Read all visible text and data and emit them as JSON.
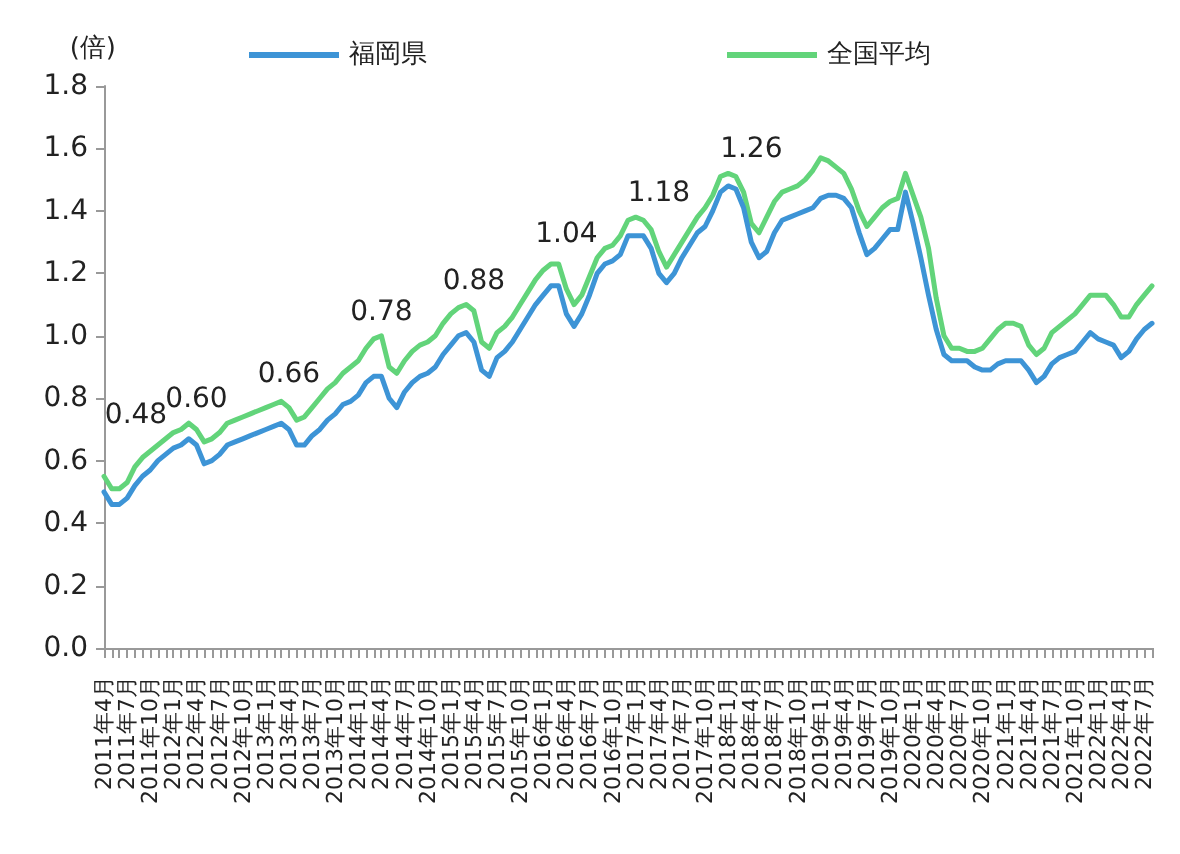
{
  "chart_data": {
    "type": "line",
    "ylabel": "(倍)",
    "categories": [
      "2011年4月",
      null,
      null,
      "2011年7月",
      null,
      null,
      "2011年10月",
      null,
      null,
      "2012年1月",
      null,
      null,
      "2012年4月",
      null,
      null,
      "2012年7月",
      null,
      null,
      "2012年10月",
      null,
      null,
      "2013年1月",
      null,
      null,
      "2013年4月",
      null,
      null,
      "2013年7月",
      null,
      null,
      "2013年10月",
      null,
      null,
      "2014年1月",
      null,
      null,
      "2014年4月",
      null,
      null,
      "2014年7月",
      null,
      null,
      "2014年10月",
      null,
      null,
      "2015年1月",
      null,
      null,
      "2015年4月",
      null,
      null,
      "2015年7月",
      null,
      null,
      "2015年10月",
      null,
      null,
      "2016年1月",
      null,
      null,
      "2016年4月",
      null,
      null,
      "2016年7月",
      null,
      null,
      "2016年10月",
      null,
      null,
      "2017年1月",
      null,
      null,
      "2017年4月",
      null,
      null,
      "2017年7月",
      null,
      null,
      "2017年10月",
      null,
      null,
      "2018年1月",
      null,
      null,
      "2018年4月",
      null,
      null,
      "2018年7月",
      null,
      null,
      "2018年10月",
      null,
      null,
      "2019年1月",
      null,
      null,
      "2019年4月",
      null,
      null,
      "2019年7月",
      null,
      null,
      "2019年10月",
      null,
      null,
      "2020年1月",
      null,
      null,
      "2020年4月",
      null,
      null,
      "2020年7月",
      null,
      null,
      "2020年10月",
      null,
      null,
      "2021年1月",
      null,
      null,
      "2021年4月",
      null,
      null,
      "2021年7月",
      null,
      null,
      "2021年10月",
      null,
      null,
      "2022年1月",
      null,
      null,
      "2022年4月",
      null,
      null,
      "2022年7月",
      null
    ],
    "series": [
      {
        "name": "福岡県",
        "color": "#3d94d6",
        "values": [
          0.5,
          0.46,
          0.46,
          0.48,
          0.52,
          0.55,
          0.57,
          0.6,
          0.62,
          0.64,
          0.65,
          0.67,
          0.65,
          0.59,
          0.6,
          0.62,
          0.65,
          0.66,
          0.67,
          0.68,
          0.69,
          0.7,
          0.71,
          0.72,
          0.7,
          0.65,
          0.65,
          0.68,
          0.7,
          0.73,
          0.75,
          0.78,
          0.79,
          0.81,
          0.85,
          0.87,
          0.87,
          0.8,
          0.77,
          0.82,
          0.85,
          0.87,
          0.88,
          0.9,
          0.94,
          0.97,
          1.0,
          1.01,
          0.98,
          0.89,
          0.87,
          0.93,
          0.95,
          0.98,
          1.02,
          1.06,
          1.1,
          1.13,
          1.16,
          1.16,
          1.07,
          1.03,
          1.07,
          1.13,
          1.2,
          1.23,
          1.24,
          1.26,
          1.32,
          1.32,
          1.32,
          1.28,
          1.2,
          1.17,
          1.2,
          1.25,
          1.29,
          1.33,
          1.35,
          1.4,
          1.46,
          1.48,
          1.47,
          1.41,
          1.3,
          1.25,
          1.27,
          1.33,
          1.37,
          1.38,
          1.39,
          1.4,
          1.41,
          1.44,
          1.45,
          1.45,
          1.44,
          1.41,
          1.33,
          1.26,
          1.28,
          1.31,
          1.34,
          1.34,
          1.46,
          1.36,
          1.25,
          1.13,
          1.02,
          0.94,
          0.92,
          0.92,
          0.92,
          0.9,
          0.89,
          0.89,
          0.91,
          0.92,
          0.92,
          0.92,
          0.89,
          0.85,
          0.87,
          0.91,
          0.93,
          0.94,
          0.95,
          0.98,
          1.01,
          0.99,
          0.98,
          0.97,
          0.93,
          0.95,
          0.99,
          1.02,
          1.04
        ]
      },
      {
        "name": "全国平均",
        "color": "#62d47a",
        "values": [
          0.55,
          0.51,
          0.51,
          0.53,
          0.58,
          0.61,
          0.63,
          0.65,
          0.67,
          0.69,
          0.7,
          0.72,
          0.7,
          0.66,
          0.67,
          0.69,
          0.72,
          0.73,
          0.74,
          0.75,
          0.76,
          0.77,
          0.78,
          0.79,
          0.77,
          0.73,
          0.74,
          0.77,
          0.8,
          0.83,
          0.85,
          0.88,
          0.9,
          0.92,
          0.96,
          0.99,
          1.0,
          0.9,
          0.88,
          0.92,
          0.95,
          0.97,
          0.98,
          1.0,
          1.04,
          1.07,
          1.09,
          1.1,
          1.08,
          0.98,
          0.96,
          1.01,
          1.03,
          1.06,
          1.1,
          1.14,
          1.18,
          1.21,
          1.23,
          1.23,
          1.15,
          1.1,
          1.13,
          1.19,
          1.25,
          1.28,
          1.29,
          1.32,
          1.37,
          1.38,
          1.37,
          1.34,
          1.27,
          1.22,
          1.26,
          1.3,
          1.34,
          1.38,
          1.41,
          1.45,
          1.51,
          1.52,
          1.51,
          1.46,
          1.36,
          1.33,
          1.38,
          1.43,
          1.46,
          1.47,
          1.48,
          1.5,
          1.53,
          1.57,
          1.56,
          1.54,
          1.52,
          1.47,
          1.4,
          1.35,
          1.38,
          1.41,
          1.43,
          1.44,
          1.52,
          1.45,
          1.38,
          1.28,
          1.12,
          1.0,
          0.96,
          0.96,
          0.95,
          0.95,
          0.96,
          0.99,
          1.02,
          1.04,
          1.04,
          1.03,
          0.97,
          0.94,
          0.96,
          1.01,
          1.03,
          1.05,
          1.07,
          1.1,
          1.13,
          1.13,
          1.13,
          1.1,
          1.06,
          1.06,
          1.1,
          1.13,
          1.16
        ]
      }
    ],
    "ylim": [
      0,
      1.8
    ],
    "yticks": [
      {
        "value": 0,
        "label": "0.0"
      },
      0.2,
      0.4,
      0.6,
      0.8,
      {
        "value": 1,
        "label": "1.0"
      },
      1.2,
      1.4,
      1.6,
      1.8
    ],
    "grid": false,
    "legend": "top",
    "marker": "none",
    "line_style": "solid",
    "annotations": [
      "0.48",
      "0.60",
      "0.66",
      "0.78",
      "0.88",
      "1.04",
      "1.18",
      "1.26"
    ]
  }
}
